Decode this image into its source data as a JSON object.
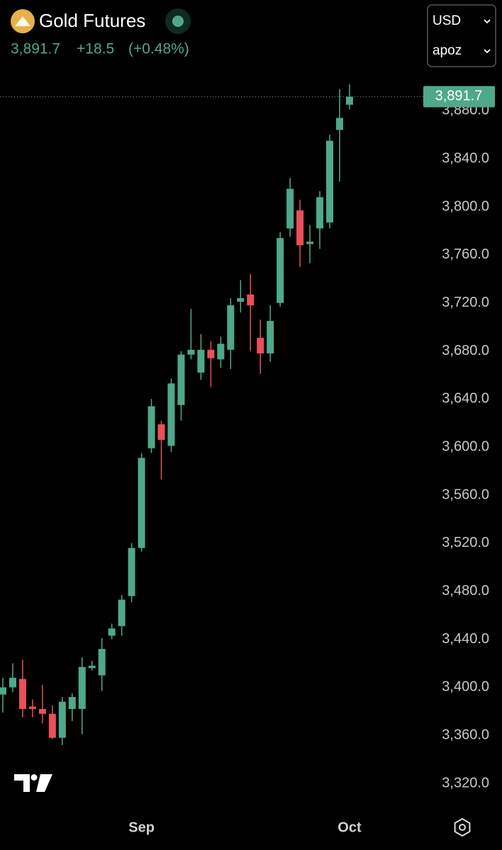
{
  "header": {
    "title": "Gold Futures",
    "currency": "USD",
    "unit": "apoz"
  },
  "chart_data": {
    "type": "candlestick",
    "last_price": {
      "value": 3891.7,
      "label": "3,891.7"
    },
    "change": {
      "value": 18.5,
      "label": "+18.5"
    },
    "change_percent": {
      "value": 0.48,
      "label": "(+0.48%)"
    },
    "up_color": "#4fa88c",
    "down_color": "#e8505a",
    "categories": [
      null,
      null,
      null,
      null,
      null,
      null,
      null,
      null,
      null,
      null,
      null,
      null,
      null,
      null,
      "Sep",
      null,
      null,
      null,
      null,
      null,
      null,
      null,
      null,
      null,
      null,
      null,
      null,
      null,
      null,
      null,
      null,
      null,
      null,
      null,
      null,
      "Oct"
    ],
    "open": [
      3394,
      3400,
      3407,
      3384,
      3382,
      3378,
      3358,
      3382,
      3382,
      3416,
      3410,
      3443,
      3451,
      3476,
      3516,
      3599,
      3619,
      3601,
      3635,
      3677,
      3662,
      3681,
      3673,
      3681,
      3721,
      3727,
      3691,
      3678,
      3720,
      3782,
      3797,
      3769,
      3782,
      3787,
      3864,
      3885
    ],
    "high": [
      3408,
      3420,
      3423,
      3390,
      3402,
      3385,
      3392,
      3395,
      3425,
      3422,
      3441,
      3453,
      3477,
      3520,
      3595,
      3640,
      3622,
      3657,
      3680,
      3715,
      3694,
      3688,
      3692,
      3724,
      3739,
      3744,
      3706,
      3718,
      3779,
      3824,
      3806,
      3785,
      3813,
      3860,
      3898,
      3902
    ],
    "low": [
      3379,
      3396,
      3375,
      3375,
      3370,
      3357,
      3352,
      3372,
      3361,
      3414,
      3397,
      3440,
      3443,
      3471,
      3513,
      3595,
      3573,
      3596,
      3622,
      3673,
      3656,
      3650,
      3666,
      3665,
      3712,
      3680,
      3661,
      3671,
      3717,
      3775,
      3750,
      3753,
      3765,
      3782,
      3821,
      3881
    ],
    "close": [
      3400,
      3408,
      3382,
      3382,
      3378,
      3358,
      3388,
      3392,
      3417,
      3418,
      3432,
      3449,
      3473,
      3516,
      3591,
      3634,
      3606,
      3653,
      3677,
      3681,
      3681,
      3674,
      3686,
      3718,
      3724,
      3718,
      3678,
      3705,
      3774,
      3815,
      3768,
      3771,
      3808,
      3855,
      3874,
      3891.7
    ],
    "ylim": [
      3300,
      3904
    ],
    "yticks": [
      {
        "value": 3320,
        "label": "3,320.0"
      },
      {
        "value": 3360,
        "label": "3,360.0"
      },
      {
        "value": 3400,
        "label": "3,400.0"
      },
      {
        "value": 3440,
        "label": "3,440.0"
      },
      {
        "value": 3480,
        "label": "3,480.0"
      },
      {
        "value": 3520,
        "label": "3,520.0"
      },
      {
        "value": 3560,
        "label": "3,560.0"
      },
      {
        "value": 3600,
        "label": "3,600.0"
      },
      {
        "value": 3640,
        "label": "3,640.0"
      },
      {
        "value": 3680,
        "label": "3,680.0"
      },
      {
        "value": 3720,
        "label": "3,720.0"
      },
      {
        "value": 3760,
        "label": "3,760.0"
      },
      {
        "value": 3800,
        "label": "3,800.0"
      },
      {
        "value": 3840,
        "label": "3,840.0"
      },
      {
        "value": 3880,
        "label": "3,880.0"
      }
    ],
    "grid": false
  }
}
